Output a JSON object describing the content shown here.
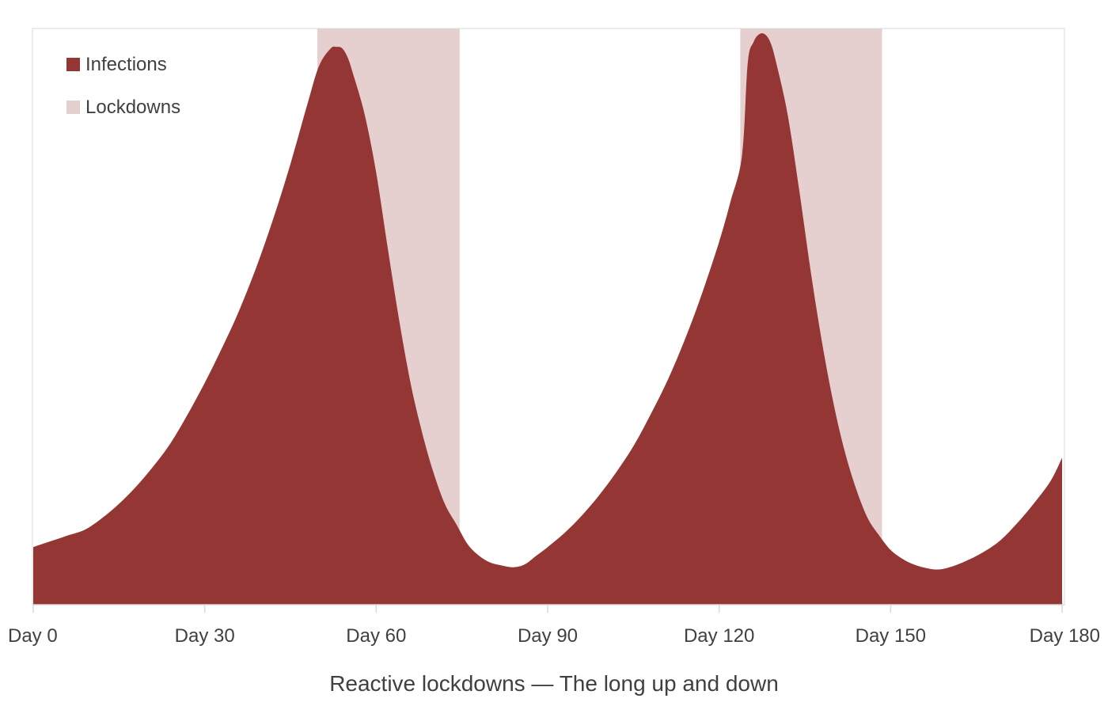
{
  "colors": {
    "infections": "#943634",
    "lockdowns": "#e6cfcf",
    "axis": "#d9d9d9",
    "text": "#404040"
  },
  "chart_data": {
    "type": "area",
    "title": "Reactive lockdowns — The long up and down",
    "xlabel": "",
    "ylabel": "",
    "xlim": [
      0,
      180
    ],
    "ylim": [
      0,
      100
    ],
    "grid": false,
    "legend": {
      "placement": "top-left",
      "entries": [
        {
          "name": "Infections",
          "color": "#943634"
        },
        {
          "name": "Lockdowns",
          "color": "#e6cfcf"
        }
      ]
    },
    "x_ticks": [
      {
        "value": 0,
        "label": "Day 0"
      },
      {
        "value": 30,
        "label": "Day 30"
      },
      {
        "value": 60,
        "label": "Day 60"
      },
      {
        "value": 90,
        "label": "Day 90"
      },
      {
        "value": 120,
        "label": "Day 120"
      },
      {
        "value": 150,
        "label": "Day 150"
      },
      {
        "value": 180,
        "label": "Day 180"
      }
    ],
    "lockdown_periods": [
      {
        "start": 49.7,
        "end": 74.6
      },
      {
        "start": 123.7,
        "end": 148.5
      }
    ],
    "series": [
      {
        "name": "Infections",
        "x": [
          0,
          3,
          6,
          9,
          12,
          15,
          18,
          21,
          24,
          27,
          30,
          33,
          36,
          39,
          42,
          45,
          48,
          50,
          52,
          53,
          54,
          55,
          56,
          58,
          60,
          62,
          64,
          66,
          68,
          70,
          72,
          74,
          76,
          78,
          80,
          82,
          84,
          86,
          88,
          90,
          93,
          96,
          99,
          102,
          105,
          108,
          111,
          114,
          117,
          120,
          122,
          124,
          125,
          126,
          127,
          128,
          129,
          130,
          132,
          134,
          136,
          138,
          140,
          142,
          144,
          146,
          148,
          150,
          152,
          154,
          156,
          158,
          160,
          163,
          166,
          169,
          172,
          175,
          178,
          180
        ],
        "values": [
          10,
          11,
          12,
          13,
          15,
          17.5,
          20.5,
          24,
          28,
          33,
          38.5,
          44.5,
          51,
          58.5,
          67,
          76.5,
          87,
          93.5,
          96.5,
          96.8,
          96.6,
          95,
          92,
          85,
          75,
          62,
          49.5,
          38.5,
          30,
          23,
          17.5,
          14,
          10.5,
          8.5,
          7.3,
          6.8,
          6.5,
          7,
          8.5,
          10,
          12.5,
          15.5,
          19,
          23,
          27.5,
          33,
          39,
          46,
          54,
          63,
          70,
          78,
          94,
          97.6,
          99,
          99,
          97.5,
          94,
          85,
          72,
          58,
          45.5,
          35,
          26.5,
          20,
          15,
          12,
          9.5,
          8,
          7,
          6.4,
          6.1,
          6.4,
          7.5,
          9,
          11,
          14,
          17.5,
          21.5,
          25.5
        ]
      }
    ]
  }
}
